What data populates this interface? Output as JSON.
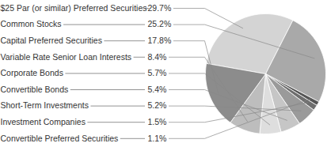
{
  "chart_data": {
    "type": "pie",
    "categories": [
      "$25 Par (or similar) Preferred Securities",
      "Common Stocks",
      "Capital Preferred Securities",
      "Variable Rate Senior Loan Interests",
      "Corporate Bonds",
      "Convertible Bonds",
      "Short-Term Investments",
      "Investment Companies",
      "Convertible Preferred Securities"
    ],
    "values": [
      29.7,
      25.2,
      17.8,
      8.4,
      5.7,
      5.4,
      5.2,
      1.5,
      1.1
    ],
    "value_labels": [
      "29.7%",
      "25.2%",
      "17.8%",
      "8.4%",
      "5.7%",
      "5.4%",
      "5.2%",
      "1.5%",
      "1.1%"
    ],
    "colors": [
      "#d4d4d4",
      "#a9a9a9",
      "#8c8c8c",
      "#bdbdbd",
      "#dedede",
      "#c6c6c6",
      "#9a9a9a",
      "#6e6e6e",
      "#555555"
    ],
    "data_labels": true
  }
}
